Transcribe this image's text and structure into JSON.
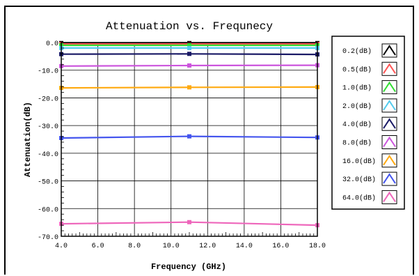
{
  "chart_data": {
    "type": "line",
    "title": "Attenuation vs. Frequnecy",
    "xlabel": "Frequency (GHz)",
    "ylabel": "Attenuation(dB)",
    "xlim": [
      4.0,
      18.0
    ],
    "ylim": [
      -70.0,
      0.0
    ],
    "x_ticks": [
      "4.0",
      "6.0",
      "8.0",
      "10.0",
      "12.0",
      "14.0",
      "16.0",
      "18.0"
    ],
    "y_ticks": [
      "0.0",
      "-10.0",
      "-20.0",
      "-30.0",
      "-40.0",
      "-50.0",
      "-60.0",
      "-70.0"
    ],
    "grid": true,
    "legend_position": "right",
    "x": [
      4.0,
      11.0,
      18.0
    ],
    "series": [
      {
        "name": "0.2(dB)",
        "color": "#000000",
        "values": [
          -0.2,
          -0.2,
          -0.2
        ]
      },
      {
        "name": "0.5(dB)",
        "color": "#ff5555",
        "values": [
          -0.5,
          -0.5,
          -0.5
        ]
      },
      {
        "name": "1.0(dB)",
        "color": "#33dd33",
        "values": [
          -1.0,
          -1.0,
          -1.0
        ]
      },
      {
        "name": "2.0(dB)",
        "color": "#55ccee",
        "values": [
          -2.0,
          -2.0,
          -2.0
        ]
      },
      {
        "name": "4.0(dB)",
        "color": "#1a1a66",
        "values": [
          -4.2,
          -4.1,
          -4.3
        ]
      },
      {
        "name": "8.0(dB)",
        "color": "#cc55dd",
        "values": [
          -8.5,
          -8.3,
          -8.2
        ]
      },
      {
        "name": "16.0(dB)",
        "color": "#ffaa11",
        "values": [
          -16.4,
          -16.2,
          -16.1
        ]
      },
      {
        "name": "32.0(dB)",
        "color": "#4455ee",
        "values": [
          -34.5,
          -33.9,
          -34.3
        ]
      },
      {
        "name": "64.0(dB)",
        "color": "#ee66bb",
        "values": [
          -65.5,
          -64.9,
          -66.0
        ]
      }
    ]
  }
}
